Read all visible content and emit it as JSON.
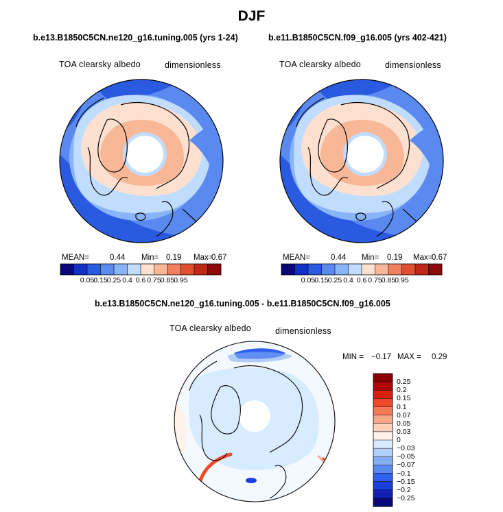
{
  "figure": {
    "title": "DJF",
    "panel_a_case": "b.e13.B1850C5CN.ne120_g16.tuning.005 (yrs 1-24)",
    "panel_b_case": "b.e11.B1850C5CN.f09_g16.005 (yrs 402-421)",
    "panel_c_case": "b.e13.B1850C5CN.ne120_g16.tuning.005 - b.e11.B1850C5CN.f09_g16.005",
    "variable": "TOA clearsky albedo",
    "units": "dimensionless",
    "panel_a_stats": {
      "mean_label": "MEAN=",
      "mean": "0.44",
      "min_label": "Min=",
      "min": "0.19",
      "max_label": "Max=",
      "max": "0.67"
    },
    "panel_b_stats": {
      "mean_label": "MEAN=",
      "mean": "0.44",
      "min_label": "Min=",
      "min": "0.19",
      "max_label": "Max=",
      "max": "0.67"
    },
    "panel_c_stats": {
      "min_label": "MIN =",
      "min": "−0.17",
      "max_label": "MAX =",
      "max": "0.29"
    }
  },
  "colors": {
    "levels_abs": [
      "#08087a",
      "#1030c8",
      "#2a5ae0",
      "#5a8af0",
      "#8ab4f8",
      "#c0dcff",
      "#fde0d0",
      "#f8b898",
      "#f08060",
      "#e05030",
      "#c02818",
      "#8a0a0a"
    ],
    "levels_diff": [
      "#08087a",
      "#1020b0",
      "#1a40e0",
      "#3060f0",
      "#5a8af0",
      "#86aef6",
      "#b0d0fa",
      "#d8ecff",
      "#fff2e8",
      "#fcd0b8",
      "#f8a888",
      "#f47a58",
      "#ee4a28",
      "#d82010",
      "#b00808",
      "#8a0000"
    ],
    "land_outline": "#000000"
  },
  "chart_data": [
    {
      "type": "heatmap",
      "projection": "polar stereographic (North Pole)",
      "title": "b.e13.B1850C5CN.ne120_g16.tuning.005 (yrs 1-24)",
      "variable": "TOA clearsky albedo",
      "units": "dimensionless",
      "mean": 0.44,
      "min": 0.19,
      "max": 0.67,
      "contour_levels": [
        0.05,
        0.15,
        0.25,
        0.4,
        0.6,
        0.75,
        0.85,
        0.95
      ],
      "colorbar_labels": [
        "0.05",
        "0.15",
        "0.25",
        "0.4",
        "0.6",
        "0.75",
        "0.85",
        "0.95"
      ]
    },
    {
      "type": "heatmap",
      "projection": "polar stereographic (North Pole)",
      "title": "b.e11.B1850C5CN.f09_g16.005 (yrs 402-421)",
      "variable": "TOA clearsky albedo",
      "units": "dimensionless",
      "mean": 0.44,
      "min": 0.19,
      "max": 0.67,
      "contour_levels": [
        0.05,
        0.15,
        0.25,
        0.4,
        0.6,
        0.75,
        0.85,
        0.95
      ],
      "colorbar_labels": [
        "0.05",
        "0.15",
        "0.25",
        "0.4",
        "0.6",
        "0.75",
        "0.85",
        "0.95"
      ]
    },
    {
      "type": "heatmap",
      "projection": "polar stereographic (North Pole)",
      "title": "b.e13.B1850C5CN.ne120_g16.tuning.005 - b.e11.B1850C5CN.f09_g16.005",
      "variable": "TOA clearsky albedo",
      "units": "dimensionless",
      "min": -0.17,
      "max": 0.29,
      "contour_levels": [
        0.25,
        0.2,
        0.15,
        0.1,
        0.07,
        0.05,
        0.03,
        0,
        -0.03,
        -0.05,
        -0.07,
        -0.1,
        -0.15,
        -0.2,
        -0.25
      ],
      "colorbar_labels": [
        "0.25",
        "0.2",
        "0.15",
        "0.1",
        "0.07",
        "0.05",
        "0.03",
        "0",
        "−0.03",
        "−0.05",
        "−0.07",
        "−0.1",
        "−0.15",
        "−0.2",
        "−0.25"
      ]
    }
  ]
}
